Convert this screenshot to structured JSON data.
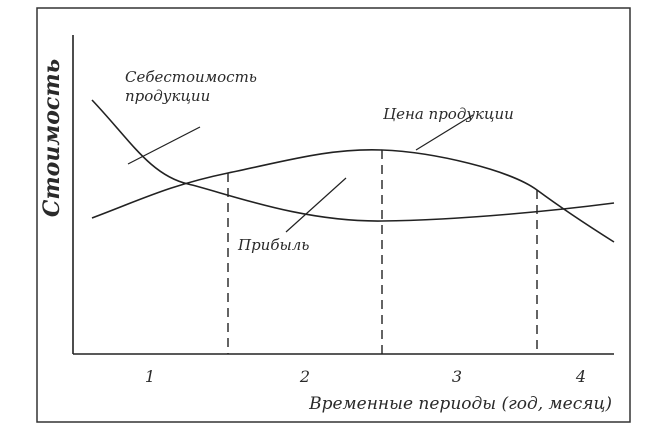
{
  "diagram": {
    "y_axis_label": "Стоимость",
    "x_axis_label": "Временные периоды (год, месяц)",
    "period_labels": [
      "1",
      "2",
      "3",
      "4"
    ],
    "curves": {
      "cost_label_line1": "Себестоимость",
      "cost_label_line2": "продукции",
      "price_label": "Цена продукции",
      "profit_label": "Прибыль"
    },
    "ink_color": "#2a2a2a"
  }
}
